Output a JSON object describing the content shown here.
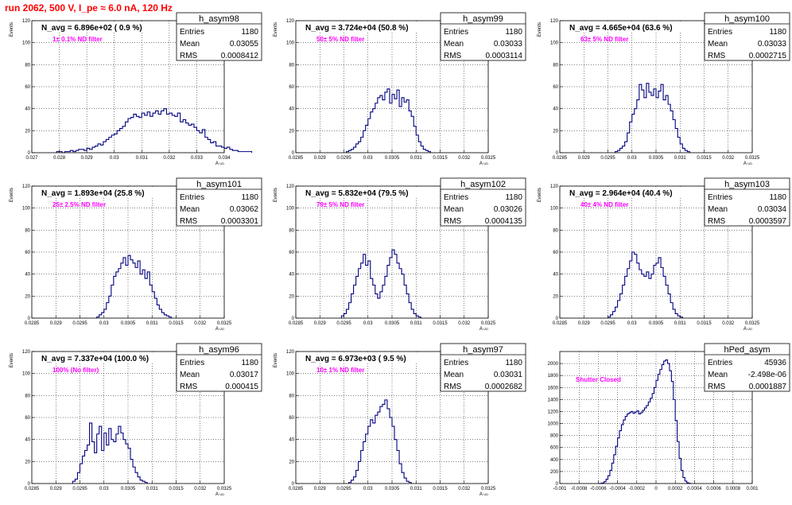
{
  "title": "run 2062,   500 V, I_pe ≈ 6.0 nA, 120 Hz",
  "colors": {
    "histogram": "#000080",
    "annotation": "#ff00ff",
    "title": "#ff0000",
    "axes": "#000000"
  },
  "chart_data": [
    {
      "type": "bar",
      "name": "h_asym98",
      "nAvg": "N_avg = 6.896e+02 ( 0.9 %)",
      "filter": "1± 0.1% ND filter",
      "stats": [
        [
          "Entries",
          "1180"
        ],
        [
          "Mean",
          "0.03055"
        ],
        [
          "RMS",
          "0.0008412"
        ]
      ],
      "xlim": [
        0.027,
        0.034
      ],
      "ylim": [
        0,
        120
      ],
      "xlabel": "A_UD",
      "ylabel": "Events",
      "xticks": [
        "0.027",
        "0.028",
        "0.029",
        "0.03",
        "0.031",
        "0.032",
        "0.033",
        "0.034"
      ],
      "yticks": [
        "0",
        "20",
        "40",
        "60",
        "80",
        "100",
        "120"
      ],
      "bin_start": 0.0279,
      "bin_width": 0.0001,
      "values": [
        1,
        1,
        0,
        1,
        1,
        2,
        1,
        2,
        3,
        3,
        2,
        4,
        3,
        5,
        6,
        8,
        7,
        10,
        12,
        14,
        16,
        17,
        20,
        22,
        24,
        28,
        31,
        32,
        35,
        33,
        32,
        36,
        34,
        37,
        33,
        36,
        38,
        35,
        38,
        40,
        35,
        36,
        34,
        33,
        36,
        28,
        30,
        27,
        25,
        26,
        23,
        20,
        18,
        21,
        14,
        12,
        9,
        10,
        6,
        6,
        5,
        4,
        5,
        3,
        2,
        2,
        1,
        1,
        1,
        1,
        1
      ]
    },
    {
      "type": "bar",
      "name": "h_asym99",
      "nAvg": "N_avg = 3.724e+04 (50.8 %)",
      "filter": "50± 5% ND filter",
      "stats": [
        [
          "Entries",
          "1180"
        ],
        [
          "Mean",
          "0.03033"
        ],
        [
          "RMS",
          "0.0003114"
        ]
      ],
      "xlim": [
        0.0285,
        0.0325
      ],
      "ylim": [
        0,
        120
      ],
      "xlabel": "A_UD",
      "ylabel": "Events",
      "xticks": [
        "0.0285",
        "0.029",
        "0.0295",
        "0.03",
        "0.0305",
        "0.031",
        "0.0315",
        "0.032",
        "0.0325"
      ],
      "yticks": [
        "0",
        "20",
        "40",
        "60",
        "80",
        "100",
        "120"
      ],
      "bin_start": 0.02955,
      "bin_width": 5e-05,
      "values": [
        1,
        2,
        3,
        5,
        8,
        10,
        14,
        20,
        25,
        31,
        37,
        40,
        45,
        50,
        52,
        48,
        55,
        58,
        45,
        53,
        49,
        57,
        42,
        50,
        46,
        48,
        38,
        33,
        24,
        16,
        10,
        6,
        3,
        2,
        1
      ]
    },
    {
      "type": "bar",
      "name": "h_asym100",
      "nAvg": "N_avg = 4.665e+04 (63.6 %)",
      "filter": "63± 5% ND filter",
      "stats": [
        [
          "Entries",
          "1180"
        ],
        [
          "Mean",
          "0.03033"
        ],
        [
          "RMS",
          "0.0002715"
        ]
      ],
      "xlim": [
        0.0285,
        0.0325
      ],
      "ylim": [
        0,
        120
      ],
      "xlabel": "A_UD",
      "ylabel": "Events",
      "xticks": [
        "0.0285",
        "0.029",
        "0.0295",
        "0.03",
        "0.0305",
        "0.031",
        "0.0315",
        "0.032",
        "0.0325"
      ],
      "yticks": [
        "0",
        "20",
        "40",
        "60",
        "80",
        "100",
        "120"
      ],
      "bin_start": 0.02965,
      "bin_width": 5e-05,
      "values": [
        1,
        2,
        4,
        6,
        10,
        18,
        28,
        35,
        40,
        48,
        62,
        57,
        50,
        63,
        55,
        52,
        58,
        50,
        56,
        62,
        48,
        52,
        44,
        38,
        30,
        22,
        14,
        8,
        4,
        2,
        1
      ]
    },
    {
      "type": "bar",
      "name": "h_asym101",
      "nAvg": "N_avg = 1.893e+04 (25.8 %)",
      "filter": "25± 2.5% ND filter",
      "stats": [
        [
          "Entries",
          "1180"
        ],
        [
          "Mean",
          "0.03062"
        ],
        [
          "RMS",
          "0.0003301"
        ]
      ],
      "xlim": [
        0.0285,
        0.0325
      ],
      "ylim": [
        0,
        120
      ],
      "xlabel": "A_UD",
      "ylabel": "Events",
      "xticks": [
        "0.0285",
        "0.029",
        "0.0295",
        "0.03",
        "0.0305",
        "0.031",
        "0.0315",
        "0.032",
        "0.0325"
      ],
      "yticks": [
        "0",
        "20",
        "40",
        "60",
        "80",
        "100",
        "120"
      ],
      "bin_start": 0.02985,
      "bin_width": 5e-05,
      "values": [
        1,
        3,
        5,
        8,
        14,
        20,
        30,
        38,
        42,
        45,
        50,
        55,
        48,
        57,
        53,
        50,
        46,
        52,
        40,
        44,
        36,
        42,
        30,
        24,
        18,
        12,
        8,
        5,
        3,
        2,
        1
      ]
    },
    {
      "type": "bar",
      "name": "h_asym102",
      "nAvg": "N_avg = 5.832e+04 (79.5 %)",
      "filter": "79± 5% ND filter",
      "stats": [
        [
          "Entries",
          "1180"
        ],
        [
          "Mean",
          "0.03026"
        ],
        [
          "RMS",
          "0.0004135"
        ]
      ],
      "xlim": [
        0.0285,
        0.0325
      ],
      "ylim": [
        0,
        120
      ],
      "xlabel": "A_UD",
      "ylabel": "Events",
      "xticks": [
        "0.0285",
        "0.029",
        "0.0295",
        "0.03",
        "0.0305",
        "0.031",
        "0.0315",
        "0.032",
        "0.0325"
      ],
      "yticks": [
        "0",
        "20",
        "40",
        "60",
        "80",
        "100",
        "120"
      ],
      "bin_start": 0.02945,
      "bin_width": 5e-05,
      "values": [
        2,
        4,
        8,
        14,
        22,
        30,
        38,
        45,
        50,
        58,
        48,
        52,
        36,
        30,
        22,
        18,
        24,
        30,
        38,
        48,
        55,
        62,
        58,
        50,
        45,
        40,
        30,
        22,
        14,
        8,
        4,
        2,
        1
      ]
    },
    {
      "type": "bar",
      "name": "h_asym103",
      "nAvg": "N_avg = 2.964e+04 (40.4 %)",
      "filter": "40± 4% ND filter",
      "stats": [
        [
          "Entries",
          "1180"
        ],
        [
          "Mean",
          "0.03034"
        ],
        [
          "RMS",
          "0.0003597"
        ]
      ],
      "xlim": [
        0.0285,
        0.0325
      ],
      "ylim": [
        0,
        120
      ],
      "xlabel": "A_UD",
      "ylabel": "Events",
      "xticks": [
        "0.0285",
        "0.029",
        "0.0295",
        "0.03",
        "0.0305",
        "0.031",
        "0.0315",
        "0.032",
        "0.0325"
      ],
      "yticks": [
        "0",
        "20",
        "40",
        "60",
        "80",
        "100",
        "120"
      ],
      "bin_start": 0.0295,
      "bin_width": 5e-05,
      "values": [
        1,
        3,
        6,
        10,
        16,
        22,
        30,
        38,
        45,
        52,
        60,
        58,
        50,
        44,
        40,
        38,
        42,
        36,
        40,
        48,
        50,
        55,
        46,
        38,
        30,
        22,
        14,
        8,
        4,
        2,
        1
      ]
    },
    {
      "type": "bar",
      "name": "h_asym96",
      "nAvg": "N_avg = 7.337e+04 (100.0 %)",
      "filter": "100% (No filter)",
      "stats": [
        [
          "Entries",
          "1180"
        ],
        [
          "Mean",
          "0.03017"
        ],
        [
          "RMS",
          "0.000415"
        ]
      ],
      "xlim": [
        0.0285,
        0.0325
      ],
      "ylim": [
        0,
        120
      ],
      "xlabel": "A_UD",
      "ylabel": "Events",
      "xticks": [
        "0.0285",
        "0.029",
        "0.0295",
        "0.03",
        "0.0305",
        "0.031",
        "0.0315",
        "0.032",
        "0.0325"
      ],
      "yticks": [
        "0",
        "20",
        "40",
        "60",
        "80",
        "100",
        "120"
      ],
      "bin_start": 0.02935,
      "bin_width": 5e-05,
      "values": [
        2,
        4,
        10,
        18,
        25,
        30,
        35,
        55,
        38,
        28,
        45,
        52,
        30,
        46,
        35,
        50,
        40,
        38,
        45,
        52,
        46,
        40,
        36,
        32,
        22,
        15,
        10,
        6,
        3,
        2,
        1
      ]
    },
    {
      "type": "bar",
      "name": "h_asym97",
      "nAvg": "N_avg = 6.973e+03 ( 9.5 %)",
      "filter": "10± 1% ND filter",
      "stats": [
        [
          "Entries",
          "1180"
        ],
        [
          "Mean",
          "0.03031"
        ],
        [
          "RMS",
          "0.0002682"
        ]
      ],
      "xlim": [
        0.0285,
        0.0325
      ],
      "ylim": [
        0,
        120
      ],
      "xlabel": "A_UD",
      "ylabel": "Events",
      "xticks": [
        "0.0285",
        "0.029",
        "0.0295",
        "0.03",
        "0.0305",
        "0.031",
        "0.0315",
        "0.032",
        "0.0325"
      ],
      "yticks": [
        "0",
        "20",
        "40",
        "60",
        "80",
        "100",
        "120"
      ],
      "bin_start": 0.0296,
      "bin_width": 5e-05,
      "values": [
        1,
        3,
        6,
        12,
        20,
        30,
        38,
        45,
        52,
        58,
        55,
        62,
        65,
        70,
        72,
        76,
        68,
        60,
        52,
        40,
        30,
        18,
        10,
        5,
        2,
        1
      ]
    },
    {
      "type": "bar",
      "name": "hPed_asym",
      "nAvg": "",
      "filter": "Shutter Closed",
      "stats": [
        [
          "Entries",
          "45936"
        ],
        [
          "Mean",
          "-2.498e-06"
        ],
        [
          "RMS",
          "0.0001887"
        ]
      ],
      "xlim": [
        -0.001,
        0.001
      ],
      "ylim": [
        0,
        2200
      ],
      "xlabel": "",
      "ylabel": "",
      "xticks": [
        "-0.001",
        "-0.0008",
        "-0.0006",
        "-0.0004",
        "-0.0002",
        "0",
        "0.0002",
        "0.0004",
        "0.0006",
        "0.0008",
        "0.001"
      ],
      "yticks": [
        "0",
        "200",
        "400",
        "600",
        "800",
        "1000",
        "1200",
        "1400",
        "1600",
        "1800",
        "2000"
      ],
      "bin_start": -0.0006,
      "bin_width": 2e-05,
      "values": [
        0,
        2,
        10,
        30,
        70,
        130,
        220,
        340,
        480,
        620,
        760,
        880,
        980,
        1060,
        1120,
        1160,
        1180,
        1200,
        1170,
        1190,
        1210,
        1160,
        1180,
        1220,
        1260,
        1300,
        1360,
        1420,
        1500,
        1600,
        1720,
        1820,
        1900,
        1980,
        2040,
        2060,
        2000,
        1880,
        1700,
        1400,
        1050,
        700,
        420,
        220,
        100,
        40,
        12,
        3
      ]
    }
  ]
}
